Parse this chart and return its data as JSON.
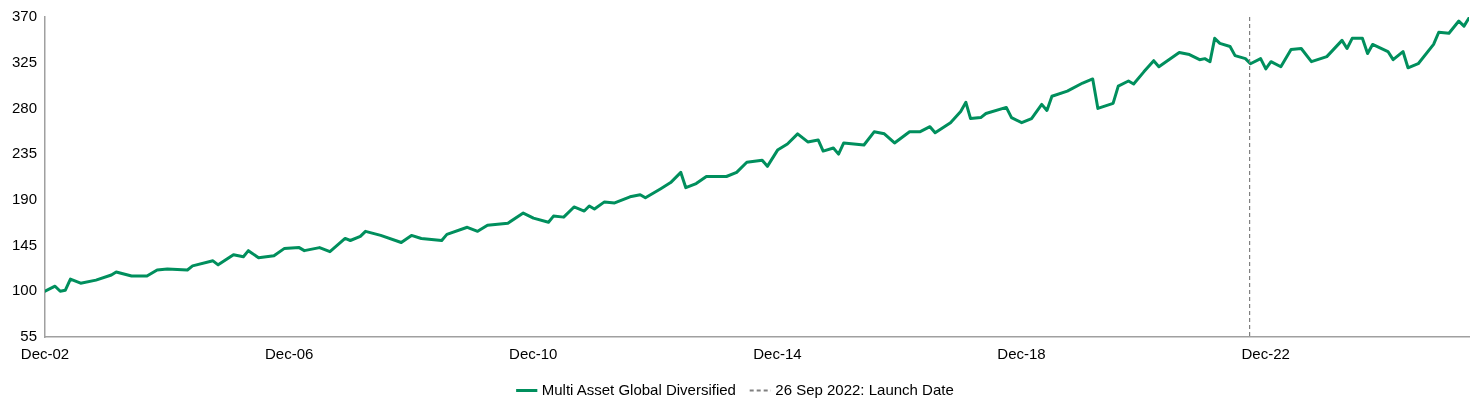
{
  "chart_data": {
    "type": "line",
    "x": [
      "2002-12-31",
      "2003-03",
      "2003-04",
      "2003-05",
      "2003-06",
      "2003-08",
      "2003-11",
      "2004-02",
      "2004-03",
      "2004-06",
      "2004-09",
      "2004-11",
      "2005-01",
      "2005-05",
      "2005-06",
      "2005-10",
      "2005-11",
      "2006-02",
      "2006-04",
      "2006-05",
      "2006-07",
      "2006-10",
      "2006-12",
      "2007-03",
      "2007-04",
      "2007-07",
      "2007-09",
      "2007-12",
      "2008-01",
      "2008-03",
      "2008-04",
      "2008-07",
      "2008-11",
      "2009-01",
      "2009-03",
      "2009-07",
      "2009-08",
      "2009-12",
      "2010-02",
      "2010-04",
      "2010-08",
      "2010-11",
      "2011-01",
      "2011-04",
      "2011-05",
      "2011-07",
      "2011-09",
      "2011-11",
      "2011-12",
      "2012-01",
      "2012-03",
      "2012-05",
      "2012-08",
      "2012-10",
      "2012-11",
      "2013-02",
      "2013-04",
      "2013-06",
      "2013-07",
      "2013-09",
      "2013-11",
      "2014-03",
      "2014-05",
      "2014-07",
      "2014-10",
      "2014-11",
      "2015-01",
      "2015-03",
      "2015-05",
      "2015-07",
      "2015-09",
      "2015-10",
      "2015-12",
      "2016-01",
      "2016-02",
      "2016-06",
      "2016-08",
      "2016-10",
      "2016-12",
      "2017-03",
      "2017-05",
      "2017-07",
      "2017-08",
      "2017-11",
      "2018-01",
      "2018-02",
      "2018-03",
      "2018-05",
      "2018-06",
      "2018-10",
      "2018-11",
      "2019-01",
      "2019-03",
      "2019-05",
      "2019-06",
      "2019-07",
      "2019-10",
      "2020-01",
      "2020-03",
      "2020-04",
      "2020-07",
      "2020-08",
      "2020-10",
      "2020-11",
      "2021-01",
      "2021-03",
      "2021-04",
      "2021-08",
      "2021-10",
      "2021-12",
      "2022-01",
      "2022-02",
      "2022-03",
      "2022-04",
      "2022-06",
      "2022-07",
      "2022-09",
      "2022-10",
      "2022-12",
      "2023-01",
      "2023-02",
      "2023-04",
      "2023-06",
      "2023-08",
      "2023-10",
      "2024-01",
      "2024-04",
      "2024-05",
      "2024-06",
      "2024-08",
      "2024-09",
      "2024-10",
      "2025-01",
      "2025-02",
      "2025-04",
      "2025-05",
      "2025-07",
      "2025-10",
      "2025-11",
      "2026-01",
      "2026-03",
      "2026-04",
      "2026-05"
    ],
    "series": [
      {
        "name": "Multi Asset Global Diversified",
        "color": "#008f5d",
        "values": [
          100,
          105,
          100,
          101,
          112,
          108,
          111,
          116,
          119,
          115,
          115,
          121,
          122,
          121,
          125,
          130,
          126,
          136,
          134,
          140,
          133,
          135,
          142,
          143,
          140,
          143,
          139,
          152,
          150,
          154,
          159,
          155,
          148,
          155,
          152,
          150,
          156,
          163,
          159,
          165,
          167,
          177,
          172,
          168,
          174,
          173,
          183,
          179,
          184,
          181,
          188,
          187,
          193,
          195,
          192,
          201,
          207,
          217,
          202,
          206,
          213,
          213,
          217,
          227,
          229,
          223,
          239,
          245,
          255,
          247,
          249,
          238,
          241,
          235,
          246,
          244,
          257,
          255,
          246,
          257,
          257,
          262,
          256,
          266,
          277,
          286,
          270,
          271,
          275,
          281,
          271,
          266,
          270,
          284,
          278,
          292,
          297,
          305,
          309,
          280,
          285,
          302,
          307,
          304,
          316,
          327,
          321,
          335,
          333,
          328,
          329,
          326,
          349,
          344,
          341,
          332,
          329,
          324,
          329,
          319,
          326,
          321,
          338,
          339,
          326,
          331,
          347,
          339,
          349,
          349,
          334,
          343,
          336,
          328,
          336,
          320,
          324,
          343,
          355,
          354,
          366,
          361,
          369
        ]
      }
    ],
    "xlim": [
      "2002-12-31",
      "2026-05"
    ],
    "xticks": [
      {
        "value": "2002-12-31",
        "label": "Dec-02"
      },
      {
        "value": "2006-12-31",
        "label": "Dec-06"
      },
      {
        "value": "2010-12-31",
        "label": "Dec-10"
      },
      {
        "value": "2014-12-31",
        "label": "Dec-14"
      },
      {
        "value": "2018-12-31",
        "label": "Dec-18"
      },
      {
        "value": "2022-12-31",
        "label": "Dec-22"
      }
    ],
    "ylim": [
      55,
      370
    ],
    "yticks": [
      55,
      100,
      145,
      190,
      235,
      280,
      325,
      370
    ],
    "ref_lines": [
      {
        "axis": "x",
        "value": "2022-09-26",
        "label": "26 Sep 2022: Launch Date",
        "color": "#808080",
        "line_style": "dashed"
      }
    ],
    "legend": "bottom",
    "marker": "none",
    "line_style": "solid"
  }
}
